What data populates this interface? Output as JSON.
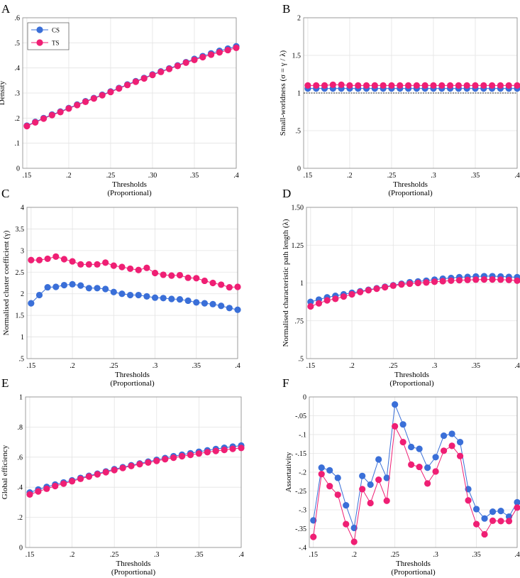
{
  "colors": {
    "cs": "#3a6fd8",
    "ts": "#ef1f74",
    "grid": "#e3e3e3",
    "axis": "#888888",
    "ref": "#222222"
  },
  "legend": {
    "cs_label": "CS",
    "ts_label": "TS"
  },
  "chart_data": [
    {
      "panel": "A",
      "type": "line",
      "title": "",
      "xlabel": "Thresholds",
      "xlabel2": "(Proportional)",
      "ylabel": "Density",
      "xlim": [
        0.145,
        0.4
      ],
      "ylim": [
        0,
        0.6
      ],
      "xticks": [
        0.15,
        0.2,
        0.25,
        0.3,
        0.35,
        0.4
      ],
      "xtick_labels": [
        ".15",
        ".2",
        ".25",
        ".30",
        ".35",
        ".4"
      ],
      "yticks": [
        0,
        0.1,
        0.2,
        0.3,
        0.4,
        0.5,
        0.6
      ],
      "ytick_labels": [
        "0",
        ".1",
        ".2",
        ".3",
        ".4",
        ".5",
        ".6"
      ],
      "legend": true,
      "x": [
        0.15,
        0.16,
        0.17,
        0.18,
        0.19,
        0.2,
        0.21,
        0.22,
        0.23,
        0.24,
        0.25,
        0.26,
        0.27,
        0.28,
        0.29,
        0.3,
        0.31,
        0.32,
        0.33,
        0.34,
        0.35,
        0.36,
        0.37,
        0.38,
        0.39,
        0.4
      ],
      "series": [
        {
          "name": "CS",
          "values": [
            0.17,
            0.185,
            0.2,
            0.214,
            0.226,
            0.24,
            0.254,
            0.267,
            0.28,
            0.293,
            0.306,
            0.32,
            0.334,
            0.347,
            0.36,
            0.374,
            0.386,
            0.398,
            0.41,
            0.423,
            0.436,
            0.447,
            0.458,
            0.468,
            0.477,
            0.486
          ]
        },
        {
          "name": "TS",
          "values": [
            0.168,
            0.183,
            0.198,
            0.212,
            0.224,
            0.238,
            0.252,
            0.265,
            0.278,
            0.291,
            0.304,
            0.318,
            0.332,
            0.345,
            0.358,
            0.372,
            0.384,
            0.396,
            0.408,
            0.421,
            0.432,
            0.443,
            0.453,
            0.462,
            0.471,
            0.48
          ]
        }
      ]
    },
    {
      "panel": "B",
      "type": "line",
      "title": "",
      "xlabel": "Thresholds",
      "xlabel2": "(Proportional)",
      "ylabel": "Small-worldness (σ = γ / λ)",
      "xlim": [
        0.145,
        0.4
      ],
      "ylim": [
        0,
        2
      ],
      "xticks": [
        0.15,
        0.2,
        0.25,
        0.3,
        0.35,
        0.4
      ],
      "xtick_labels": [
        ".15",
        ".2",
        ".25",
        ".3",
        ".35",
        ".4"
      ],
      "yticks": [
        0,
        0.5,
        1,
        1.5,
        2
      ],
      "ytick_labels": [
        "0",
        ".5",
        "1",
        "1.5",
        "2"
      ],
      "reference_line": 1,
      "x": [
        0.15,
        0.16,
        0.17,
        0.18,
        0.19,
        0.2,
        0.21,
        0.22,
        0.23,
        0.24,
        0.25,
        0.26,
        0.27,
        0.28,
        0.29,
        0.3,
        0.31,
        0.32,
        0.33,
        0.34,
        0.35,
        0.36,
        0.37,
        0.38,
        0.39,
        0.4
      ],
      "series": [
        {
          "name": "CS",
          "values": [
            1.06,
            1.06,
            1.06,
            1.06,
            1.06,
            1.06,
            1.06,
            1.06,
            1.06,
            1.06,
            1.06,
            1.06,
            1.06,
            1.06,
            1.06,
            1.06,
            1.06,
            1.06,
            1.06,
            1.06,
            1.06,
            1.06,
            1.06,
            1.06,
            1.06,
            1.06
          ]
        },
        {
          "name": "TS",
          "values": [
            1.1,
            1.1,
            1.1,
            1.11,
            1.11,
            1.1,
            1.1,
            1.1,
            1.1,
            1.1,
            1.1,
            1.1,
            1.1,
            1.1,
            1.1,
            1.1,
            1.1,
            1.1,
            1.1,
            1.1,
            1.1,
            1.1,
            1.1,
            1.1,
            1.1,
            1.1
          ]
        }
      ]
    },
    {
      "panel": "C",
      "type": "line",
      "title": "",
      "xlabel": "Thresholds",
      "xlabel2": "(Proportional)",
      "ylabel": "Normalised cluster coefficient (γ)",
      "xlim": [
        0.145,
        0.4
      ],
      "ylim": [
        0.5,
        4
      ],
      "xticks": [
        0.15,
        0.2,
        0.25,
        0.3,
        0.35,
        0.4
      ],
      "xtick_labels": [
        ".15",
        ".2",
        ".25",
        ".3",
        ".35",
        ".4"
      ],
      "yticks": [
        0.5,
        1,
        1.5,
        2,
        2.5,
        3,
        3.5,
        4
      ],
      "ytick_labels": [
        ".5",
        "1",
        "1.5",
        "2",
        "2.5",
        "3",
        "3.5",
        "4"
      ],
      "x": [
        0.15,
        0.16,
        0.17,
        0.18,
        0.19,
        0.2,
        0.21,
        0.22,
        0.23,
        0.24,
        0.25,
        0.26,
        0.27,
        0.28,
        0.29,
        0.3,
        0.31,
        0.32,
        0.33,
        0.34,
        0.35,
        0.36,
        0.37,
        0.38,
        0.39,
        0.4
      ],
      "series": [
        {
          "name": "CS",
          "values": [
            1.78,
            1.97,
            2.15,
            2.16,
            2.2,
            2.22,
            2.19,
            2.13,
            2.13,
            2.11,
            2.04,
            2.0,
            1.97,
            1.97,
            1.94,
            1.91,
            1.9,
            1.88,
            1.87,
            1.84,
            1.8,
            1.78,
            1.76,
            1.72,
            1.67,
            1.63
          ]
        },
        {
          "name": "TS",
          "values": [
            2.78,
            2.78,
            2.81,
            2.86,
            2.8,
            2.75,
            2.68,
            2.68,
            2.68,
            2.72,
            2.65,
            2.62,
            2.58,
            2.55,
            2.6,
            2.48,
            2.44,
            2.42,
            2.43,
            2.37,
            2.36,
            2.3,
            2.25,
            2.21,
            2.15,
            2.16
          ]
        }
      ]
    },
    {
      "panel": "D",
      "type": "line",
      "title": "",
      "xlabel": "Thresholds",
      "xlabel2": "(Proportional)",
      "ylabel": "Normalised characteristic path length (λ)",
      "xlim": [
        0.145,
        0.4
      ],
      "ylim": [
        0.5,
        1.5
      ],
      "xticks": [
        0.15,
        0.2,
        0.25,
        0.3,
        0.35,
        0.4
      ],
      "xtick_labels": [
        ".15",
        ".2",
        ".25",
        ".3",
        ".35",
        ".4"
      ],
      "yticks": [
        0.5,
        0.75,
        1,
        1.25,
        1.5
      ],
      "ytick_labels": [
        ".5",
        ".75",
        "1",
        "1.25",
        "1.50"
      ],
      "x": [
        0.15,
        0.16,
        0.17,
        0.18,
        0.19,
        0.2,
        0.21,
        0.22,
        0.23,
        0.24,
        0.25,
        0.26,
        0.27,
        0.28,
        0.29,
        0.3,
        0.31,
        0.32,
        0.33,
        0.34,
        0.35,
        0.36,
        0.37,
        0.38,
        0.39,
        0.4
      ],
      "series": [
        {
          "name": "CS",
          "values": [
            0.875,
            0.89,
            0.905,
            0.915,
            0.925,
            0.935,
            0.945,
            0.955,
            0.965,
            0.975,
            0.985,
            0.995,
            1.005,
            1.01,
            1.015,
            1.022,
            1.028,
            1.033,
            1.038,
            1.04,
            1.043,
            1.045,
            1.045,
            1.043,
            1.04,
            1.038
          ]
        },
        {
          "name": "TS",
          "values": [
            0.845,
            0.865,
            0.885,
            0.895,
            0.91,
            0.925,
            0.94,
            0.952,
            0.962,
            0.972,
            0.982,
            0.99,
            0.995,
            1.0,
            1.003,
            1.008,
            1.012,
            1.015,
            1.018,
            1.02,
            1.022,
            1.023,
            1.023,
            1.022,
            1.02,
            1.015
          ]
        }
      ]
    },
    {
      "panel": "E",
      "type": "line",
      "title": "",
      "xlabel": "Thresholds",
      "xlabel2": "(Proportional)",
      "ylabel": "Global efficiency",
      "xlim": [
        0.145,
        0.4
      ],
      "ylim": [
        0,
        1
      ],
      "xticks": [
        0.15,
        0.2,
        0.25,
        0.3,
        0.35,
        0.4
      ],
      "xtick_labels": [
        ".15",
        ".2",
        ".25",
        ".3",
        ".35",
        ".4"
      ],
      "yticks": [
        0,
        0.2,
        0.4,
        0.6,
        0.8,
        1
      ],
      "ytick_labels": [
        "0",
        ".2",
        ".4",
        ".6",
        ".8",
        "1"
      ],
      "x": [
        0.15,
        0.16,
        0.17,
        0.18,
        0.19,
        0.2,
        0.21,
        0.22,
        0.23,
        0.24,
        0.25,
        0.26,
        0.27,
        0.28,
        0.29,
        0.3,
        0.31,
        0.32,
        0.33,
        0.34,
        0.35,
        0.36,
        0.37,
        0.38,
        0.39,
        0.4
      ],
      "series": [
        {
          "name": "CS",
          "values": [
            0.365,
            0.385,
            0.402,
            0.418,
            0.432,
            0.446,
            0.462,
            0.476,
            0.49,
            0.505,
            0.52,
            0.533,
            0.546,
            0.558,
            0.57,
            0.582,
            0.594,
            0.606,
            0.616,
            0.626,
            0.636,
            0.645,
            0.654,
            0.662,
            0.67,
            0.677
          ]
        },
        {
          "name": "TS",
          "values": [
            0.352,
            0.372,
            0.39,
            0.408,
            0.424,
            0.44,
            0.456,
            0.471,
            0.486,
            0.5,
            0.514,
            0.528,
            0.541,
            0.553,
            0.564,
            0.575,
            0.586,
            0.596,
            0.606,
            0.615,
            0.624,
            0.633,
            0.641,
            0.648,
            0.655,
            0.661
          ]
        }
      ]
    },
    {
      "panel": "F",
      "type": "line",
      "title": "",
      "xlabel": "Thresholds",
      "xlabel2": "(Proportional)",
      "ylabel": "Assortativity",
      "xlim": [
        0.145,
        0.4
      ],
      "ylim": [
        -0.4,
        0
      ],
      "xticks": [
        0.15,
        0.2,
        0.25,
        0.3,
        0.35,
        0.4
      ],
      "xtick_labels": [
        ".15",
        ".2",
        ".25",
        ".3",
        ".35",
        ".4"
      ],
      "yticks": [
        -0.4,
        -0.35,
        -0.3,
        -0.25,
        -0.2,
        -0.15,
        -0.1,
        -0.05,
        0
      ],
      "ytick_labels": [
        "-.4",
        "-.35",
        "-.3",
        "-.25",
        "-.2",
        "-.15",
        "-.1",
        "-.05",
        "0"
      ],
      "x": [
        0.15,
        0.16,
        0.17,
        0.18,
        0.19,
        0.2,
        0.21,
        0.22,
        0.23,
        0.24,
        0.25,
        0.26,
        0.27,
        0.28,
        0.29,
        0.3,
        0.31,
        0.32,
        0.33,
        0.34,
        0.35,
        0.36,
        0.37,
        0.38,
        0.39,
        0.4
      ],
      "series": [
        {
          "name": "CS",
          "values": [
            -0.328,
            -0.188,
            -0.195,
            -0.215,
            -0.288,
            -0.348,
            -0.21,
            -0.233,
            -0.166,
            -0.215,
            -0.02,
            -0.073,
            -0.133,
            -0.138,
            -0.188,
            -0.16,
            -0.103,
            -0.098,
            -0.12,
            -0.245,
            -0.298,
            -0.323,
            -0.305,
            -0.303,
            -0.318,
            -0.28
          ]
        },
        {
          "name": "TS",
          "values": [
            -0.372,
            -0.205,
            -0.237,
            -0.26,
            -0.338,
            -0.385,
            -0.245,
            -0.282,
            -0.22,
            -0.276,
            -0.078,
            -0.12,
            -0.18,
            -0.186,
            -0.23,
            -0.198,
            -0.143,
            -0.13,
            -0.157,
            -0.275,
            -0.338,
            -0.365,
            -0.329,
            -0.33,
            -0.33,
            -0.294
          ]
        }
      ]
    }
  ]
}
